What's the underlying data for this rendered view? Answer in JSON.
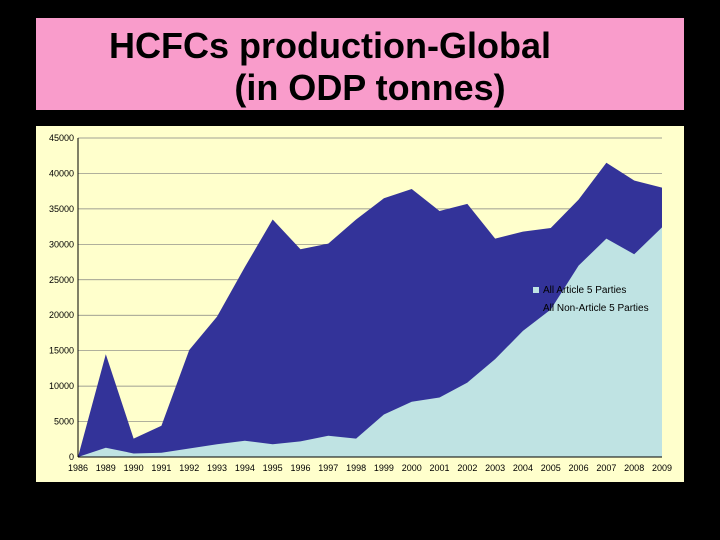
{
  "chart_data": {
    "type": "area",
    "stacked": false,
    "title_lines": [
      "HCFCs production-Global",
      "(in ODP tonnes)"
    ],
    "xlabel": "",
    "ylabel": "",
    "x": [
      "1986",
      "1989",
      "1990",
      "1991",
      "1992",
      "1993",
      "1994",
      "1995",
      "1996",
      "1997",
      "1998",
      "1999",
      "2000",
      "2001",
      "2002",
      "2003",
      "2004",
      "2005",
      "2006",
      "2007",
      "2008",
      "2009"
    ],
    "ylim": [
      0,
      45000
    ],
    "yticks": [
      "0",
      "5000",
      "10000",
      "15000",
      "20000",
      "25000",
      "30000",
      "35000",
      "40000",
      "45000"
    ],
    "grid": true,
    "legend_position": "right",
    "series": [
      {
        "name": "All Article 5 Parties",
        "color": "#BFE3E3",
        "values": [
          0,
          1300,
          500,
          600,
          1200,
          1800,
          2300,
          1800,
          2200,
          3000,
          2600,
          6000,
          7800,
          8400,
          10500,
          13800,
          17800,
          20800,
          27000,
          30800,
          28600,
          32400
        ]
      },
      {
        "name": "All Non-Article 5 Parties",
        "color": "#333399",
        "values": [
          0,
          14500,
          2600,
          4400,
          15100,
          19800,
          26800,
          33500,
          29300,
          30100,
          33500,
          36500,
          37800,
          34700,
          35700,
          30800,
          31800,
          32300,
          36300,
          41500,
          39000,
          38000
        ]
      }
    ]
  }
}
